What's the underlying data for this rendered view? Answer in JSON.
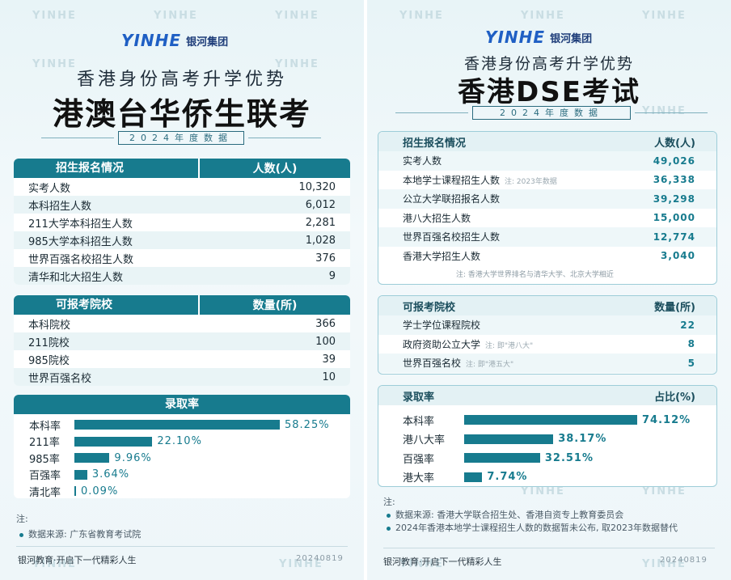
{
  "watermark": "YINHE",
  "brand": {
    "mark": "YINHE",
    "name": "银河集团"
  },
  "left": {
    "subtitle": "香港身份高考升学优势",
    "title": "港澳台华侨生联考",
    "year_label": "2024年度数据",
    "enroll": {
      "header": [
        "招生报名情况",
        "人数(人)"
      ],
      "rows": [
        {
          "k": "实考人数",
          "v": "10,320"
        },
        {
          "k": "本科招生人数",
          "v": "6,012"
        },
        {
          "k": "211大学本科招生人数",
          "v": "2,281"
        },
        {
          "k": "985大学本科招生人数",
          "v": "1,028"
        },
        {
          "k": "世界百强名校招生人数",
          "v": "376"
        },
        {
          "k": "清华和北大招生人数",
          "v": "9"
        }
      ]
    },
    "schools": {
      "header": [
        "可报考院校",
        "数量(所)"
      ],
      "rows": [
        {
          "k": "本科院校",
          "v": "366"
        },
        {
          "k": "211院校",
          "v": "100"
        },
        {
          "k": "985院校",
          "v": "39"
        },
        {
          "k": "世界百强名校",
          "v": "10"
        }
      ]
    },
    "admission": {
      "header": "录取率",
      "rows": [
        {
          "label": "本科率",
          "value": 58.25,
          "text": "58.25%"
        },
        {
          "label": "211率",
          "value": 22.1,
          "text": "22.10%"
        },
        {
          "label": "985率",
          "value": 9.96,
          "text": "9.96%"
        },
        {
          "label": "百强率",
          "value": 3.64,
          "text": "3.64%"
        },
        {
          "label": "清北率",
          "value": 0.09,
          "text": "0.09%"
        }
      ]
    },
    "notes_title": "注:",
    "notes": [
      "数据来源: 广东省教育考试院"
    ],
    "footer": "银河教育·开启下一代精彩人生",
    "date": "20240819"
  },
  "right": {
    "subtitle": "香港身份高考升学优势",
    "title": "香港DSE考试",
    "year_label": "2024年度数据",
    "enroll": {
      "header": [
        "招生报名情况",
        "人数(人)"
      ],
      "rows": [
        {
          "k": "实考人数",
          "v": "49,026",
          "note": ""
        },
        {
          "k": "本地学士课程招生人数",
          "v": "36,338",
          "note": "注: 2023年数据"
        },
        {
          "k": "公立大学联招报名人数",
          "v": "39,298",
          "note": ""
        },
        {
          "k": "港八大招生人数",
          "v": "15,000",
          "note": ""
        },
        {
          "k": "世界百强名校招生人数",
          "v": "12,774",
          "note": ""
        },
        {
          "k": "香港大学招生人数",
          "v": "3,040",
          "note": ""
        }
      ],
      "footnote": "注: 香港大学世界排名与清华大学、北京大学相近"
    },
    "schools": {
      "header": [
        "可报考院校",
        "数量(所)"
      ],
      "rows": [
        {
          "k": "学士学位课程院校",
          "v": "22",
          "note": ""
        },
        {
          "k": "政府资助公立大学",
          "v": "8",
          "note": "注: 即\"港八大\""
        },
        {
          "k": "世界百强名校",
          "v": "5",
          "note": "注: 即\"港五大\""
        }
      ]
    },
    "admission": {
      "header": [
        "录取率",
        "占比(%)"
      ],
      "rows": [
        {
          "label": "本科率",
          "value": 74.12,
          "text": "74.12%"
        },
        {
          "label": "港八大率",
          "value": 38.17,
          "text": "38.17%"
        },
        {
          "label": "百强率",
          "value": 32.51,
          "text": "32.51%"
        },
        {
          "label": "港大率",
          "value": 7.74,
          "text": "7.74%"
        }
      ]
    },
    "notes_title": "注:",
    "notes": [
      "数据来源: 香港大学联合招生处、香港自资专上教育委员会",
      "2024年香港本地学士课程招生人数的数据暂未公布, 取2023年数据替代"
    ],
    "footer": "银河教育·开启下一代精彩人生",
    "date": "20240819"
  },
  "chart_data": [
    {
      "type": "bar",
      "title": "录取率",
      "categories": [
        "本科率",
        "211率",
        "985率",
        "百强率",
        "清北率"
      ],
      "values": [
        58.25,
        22.1,
        9.96,
        3.64,
        0.09
      ],
      "xlabel": "",
      "ylabel": "%"
    },
    {
      "type": "bar",
      "title": "录取率",
      "categories": [
        "本科率",
        "港八大率",
        "百强率",
        "港大率"
      ],
      "values": [
        74.12,
        38.17,
        32.51,
        7.74
      ],
      "xlabel": "",
      "ylabel": "占比(%)"
    }
  ]
}
